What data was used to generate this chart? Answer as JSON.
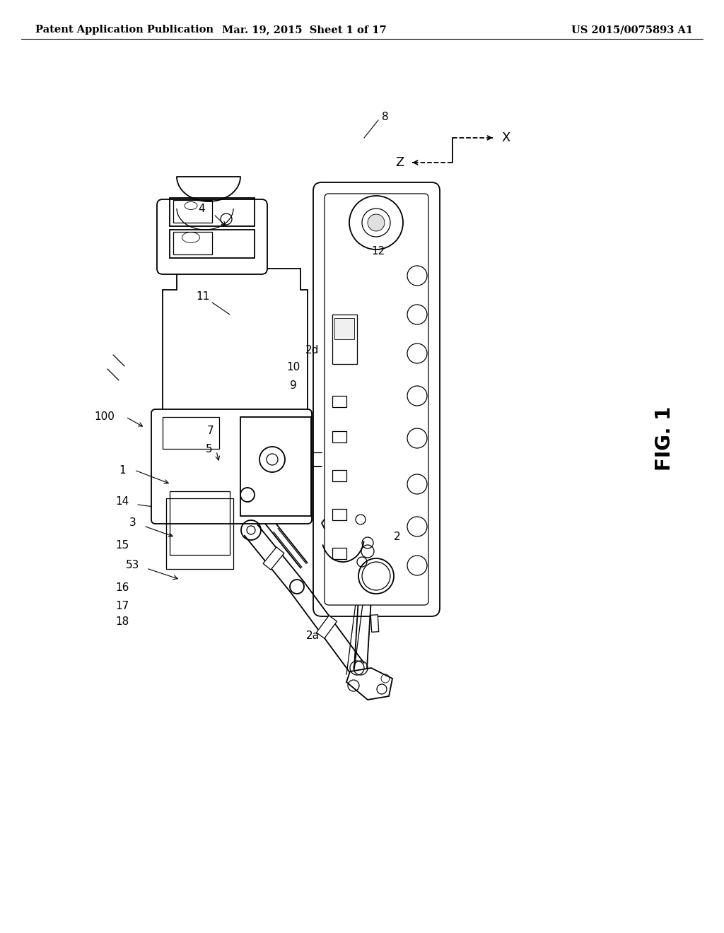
{
  "background_color": "#ffffff",
  "header_left": "Patent Application Publication",
  "header_center": "Mar. 19, 2015  Sheet 1 of 17",
  "header_right": "US 2015/0075893 A1",
  "figure_label": "FIG. 1",
  "header_fontsize": 10.5,
  "figure_fontsize": 20,
  "label_fontsize": 11,
  "text_color": "#000000",
  "line_color": "#000000",
  "line_color_gray": "#888888"
}
